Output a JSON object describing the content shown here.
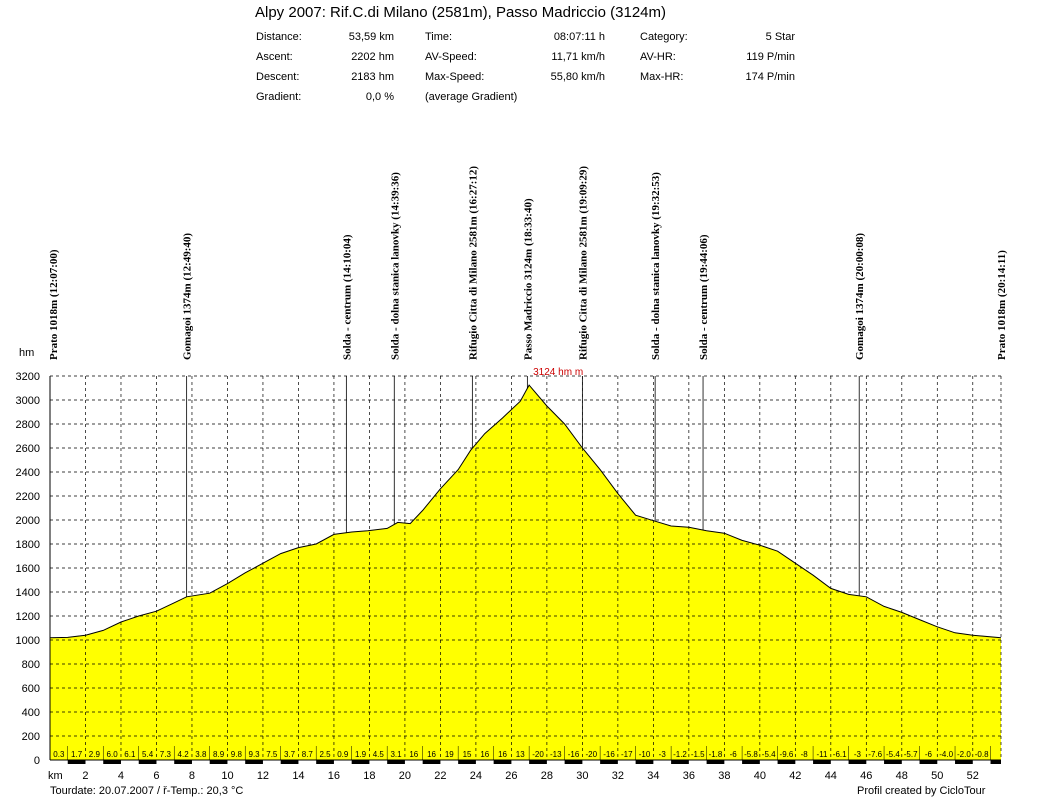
{
  "header": {
    "title": "Alpy 2007: Rif.C.di Milano (2581m), Passo Madriccio (3124m)",
    "stats": [
      {
        "label": "Distance:",
        "value": "53,59 km"
      },
      {
        "label": "Ascent:",
        "value": "2202 hm"
      },
      {
        "label": "Descent:",
        "value": "2183 hm"
      },
      {
        "label": "Gradient:",
        "value": "0,0 %"
      },
      {
        "label": "Time:",
        "value": "08:07:11 h"
      },
      {
        "label": "AV-Speed:",
        "value": "11,71 km/h"
      },
      {
        "label": "Max-Speed:",
        "value": "55,80 km/h"
      },
      {
        "label": "(average Gradient)",
        "value": ""
      },
      {
        "label": "Category:",
        "value": "5 Star"
      },
      {
        "label": "AV-HR:",
        "value": "119 P/min"
      },
      {
        "label": "Max-HR:",
        "value": "174 P/min"
      }
    ]
  },
  "footer": {
    "tourdate": "Tourdate: 20.07.2007  /  ř-Temp.: 20,3 °C",
    "credit": "Profil created by CicloTour"
  },
  "chart_data": {
    "type": "area",
    "title": "Alpy 2007: Rif.C.di Milano (2581m), Passo Madriccio (3124m)",
    "xlabel": "km",
    "ylabel": "hm",
    "xlim": [
      0,
      53.59
    ],
    "ylim": [
      0,
      3200
    ],
    "x_ticks": [
      2,
      4,
      6,
      8,
      10,
      12,
      14,
      16,
      18,
      20,
      22,
      24,
      26,
      28,
      30,
      32,
      34,
      36,
      38,
      40,
      42,
      44,
      46,
      48,
      50,
      52
    ],
    "y_ticks": [
      0,
      200,
      400,
      600,
      800,
      1000,
      1200,
      1400,
      1600,
      1800,
      2000,
      2200,
      2400,
      2600,
      2800,
      3000,
      3200
    ],
    "grid": true,
    "fill_color": "#ffff00",
    "max_label": "3124 hm m",
    "max_label_color": "#cc0000",
    "profile": {
      "x": [
        0,
        1,
        2,
        3,
        4,
        5,
        6,
        7,
        7.7,
        9,
        10,
        11,
        12,
        13,
        14,
        15,
        16,
        17,
        17.9,
        19,
        19.6,
        20.3,
        21,
        22,
        23,
        23.7,
        24.5,
        25.5,
        26.5,
        27,
        28,
        29,
        30,
        31,
        32,
        33,
        34.1,
        35,
        36,
        37,
        38,
        39,
        40,
        41,
        42,
        43,
        44,
        45,
        46,
        47,
        48,
        49,
        50,
        51,
        52,
        53.59
      ],
      "y": [
        1018,
        1022,
        1040,
        1080,
        1150,
        1200,
        1240,
        1310,
        1360,
        1390,
        1470,
        1560,
        1640,
        1720,
        1770,
        1800,
        1880,
        1900,
        1910,
        1930,
        1980,
        1970,
        2080,
        2260,
        2420,
        2581,
        2720,
        2850,
        2990,
        3124,
        2950,
        2800,
        2600,
        2420,
        2220,
        2040,
        1990,
        1950,
        1940,
        1910,
        1890,
        1830,
        1790,
        1740,
        1640,
        1540,
        1430,
        1380,
        1360,
        1280,
        1230,
        1170,
        1110,
        1060,
        1040,
        1018
      ]
    },
    "waypoints": [
      {
        "km": 0,
        "label": "Prato 1018m (12:07:00)"
      },
      {
        "km": 7.7,
        "label": "Gomagoi 1374m (12:49:40)"
      },
      {
        "km": 16.7,
        "label": "Solda - centrum (14:10:04)"
      },
      {
        "km": 19.4,
        "label": "Solda - dolna stanica lanovky (14:39:36)"
      },
      {
        "km": 23.8,
        "label": "Rifugio Citta di Milano 2581m (16:27:12)"
      },
      {
        "km": 26.9,
        "label": "Passo Madriccio 3124m (18:33:40)"
      },
      {
        "km": 30,
        "label": "Rifugio Citta di Milano 2581m (19:09:29)"
      },
      {
        "km": 34.1,
        "label": "Solda - dolna stanica lanovky (19:32:53)"
      },
      {
        "km": 36.8,
        "label": "Solda - centrum (19:44:06)"
      },
      {
        "km": 45.6,
        "label": "Gomagoi 1374m (20:00:08)"
      },
      {
        "km": 53.59,
        "label": "Prato 1018m (20:14:11)"
      }
    ],
    "gradients": [
      "0.3",
      "1.7",
      "2.9",
      "6.0",
      "6.1",
      "5.4",
      "7.3",
      "4.2",
      "3.8",
      "8.9",
      "9.8",
      "9.3",
      "7.5",
      "3.7",
      "8.7",
      "2.5",
      "0.9",
      "1.9",
      "4.5",
      "3.1",
      "16",
      "16",
      "19",
      "15",
      "16",
      "16",
      "13",
      "-20",
      "-13",
      "-16",
      "-20",
      "-16",
      "-17",
      "-10",
      "-3",
      "-1.2",
      "-1.5",
      "-1.8",
      "-6",
      "-5.8",
      "-5.4",
      "-9.6",
      "-8",
      "-11",
      "-6.1",
      "-3",
      "-7.6",
      "-5.4",
      "-5.7",
      "-6",
      "-4.0",
      "-2.0",
      "-0.8"
    ]
  }
}
